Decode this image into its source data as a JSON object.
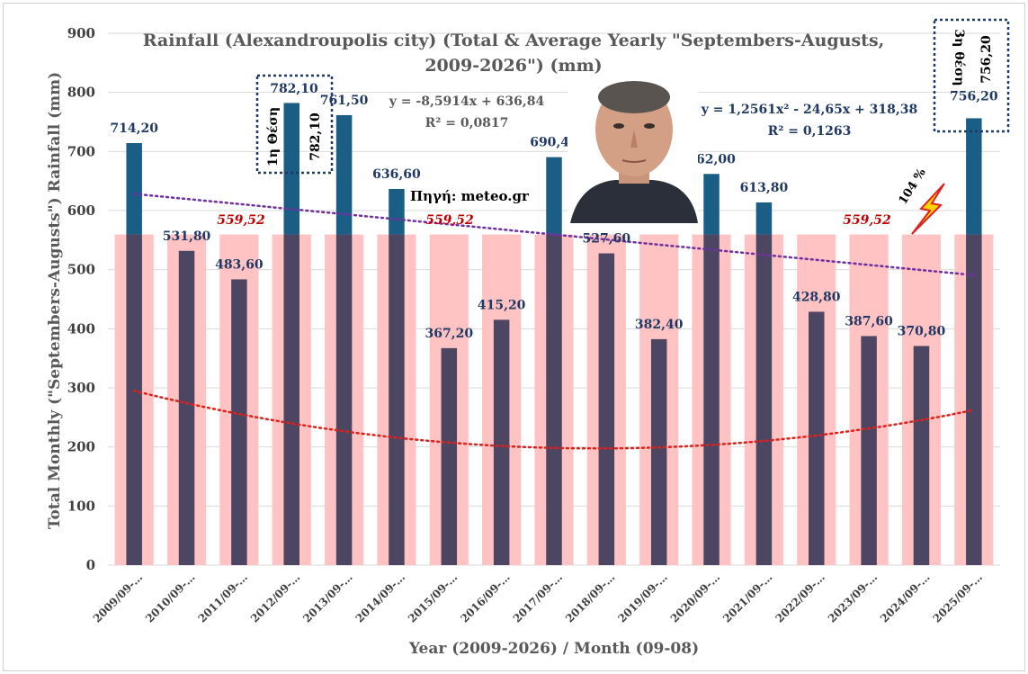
{
  "chart_data": {
    "type": "bar",
    "title_line1": "Rainfall (Alexandroupolis city) (Total & Average Yearly \"Septembers-Augusts,",
    "title_line2": "2009-2026\") (mm)",
    "xlabel": "Year (2009-2026) / Month (09-08)",
    "ylabel": "Total Monthly (\"Septembers-Augusts\") Rainfall (mm)",
    "ylim": [
      0,
      900
    ],
    "yticks": [
      0,
      100,
      200,
      300,
      400,
      500,
      600,
      700,
      800,
      900
    ],
    "grid": true,
    "categories": [
      "2009/09-…",
      "2010/09-…",
      "2011/09-…",
      "2012/09-…",
      "2013/09-…",
      "2014/09-…",
      "2015/09-…",
      "2016/09-…",
      "2017/09-…",
      "2018/09-…",
      "2019/09-…",
      "2020/09-…",
      "2021/09-…",
      "2022/09-…",
      "2023/09-…",
      "2024/09-…",
      "2025/09-…"
    ],
    "series": [
      {
        "values": [
          714.2,
          531.8,
          483.6,
          782.1,
          761.5,
          636.6,
          367.2,
          415.2,
          690.4,
          527.6,
          382.4,
          662.0,
          613.8,
          428.8,
          387.6,
          370.8,
          756.2
        ],
        "labels": [
          "714,20",
          "531,80",
          "483,60",
          "782,10",
          "761,50",
          "636,60",
          "367,20",
          "415,20",
          "690,40",
          "527,60",
          "382,40",
          "662,00",
          "613,80",
          "428,80",
          "387,60",
          "370,80",
          "756,20"
        ],
        "color_below_avg": "#4d4662",
        "color_above_avg": "#1b5e85"
      },
      {
        "value": 559.52,
        "color": "#ffc3c3"
      }
    ],
    "average_labels": [
      "559,52",
      "559,52",
      "559,52"
    ],
    "trendlines": [
      {
        "kind": "linear",
        "a": -8.5914,
        "b": 636.84,
        "color": "#7030a0",
        "equation": "y = -8,5914x + 636,84",
        "r2": "R² = 0,0817"
      },
      {
        "kind": "poly2",
        "a": 1.2561,
        "b": -24.65,
        "c": 318.38,
        "color": "#e0201a",
        "equation": "y = 1,2561x² - 24,65x + 318,38",
        "r2": "R² = 0,1263"
      }
    ],
    "annotations": {
      "source": "Πηγή: meteo.gr",
      "percent": "104 %",
      "rank1_label": "1η Θέση",
      "rank1_value": "782,10",
      "rank3_label": "3η θέση",
      "rank3_value": "756,20"
    }
  },
  "colors": {
    "grid": "#d9d9d9",
    "lightning": "#ffd400",
    "lightning_edge": "#e02020"
  }
}
